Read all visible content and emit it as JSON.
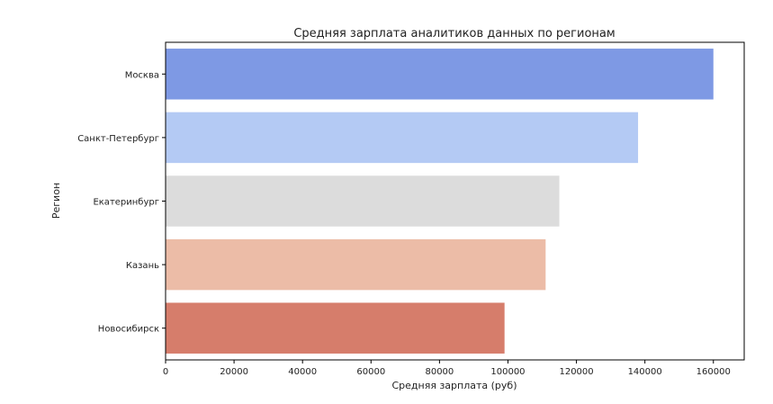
{
  "chart_data": {
    "type": "bar",
    "orientation": "horizontal",
    "title": "Средняя зарплата аналитиков данных по регионам",
    "xlabel": "Средняя зарплата (руб)",
    "ylabel": "Регион",
    "categories": [
      "Москва",
      "Санкт-Петербург",
      "Екатеринбург",
      "Казань",
      "Новосибирск"
    ],
    "values": [
      160000,
      138000,
      115000,
      111000,
      99000
    ],
    "colors": [
      "#7e99e4",
      "#b4caf4",
      "#dcdcdc",
      "#ecbca7",
      "#d67d6b"
    ],
    "xlim": [
      0,
      169000
    ],
    "xticks": [
      0,
      20000,
      40000,
      60000,
      80000,
      100000,
      120000,
      140000,
      160000
    ],
    "grid": false,
    "legend": "none"
  }
}
